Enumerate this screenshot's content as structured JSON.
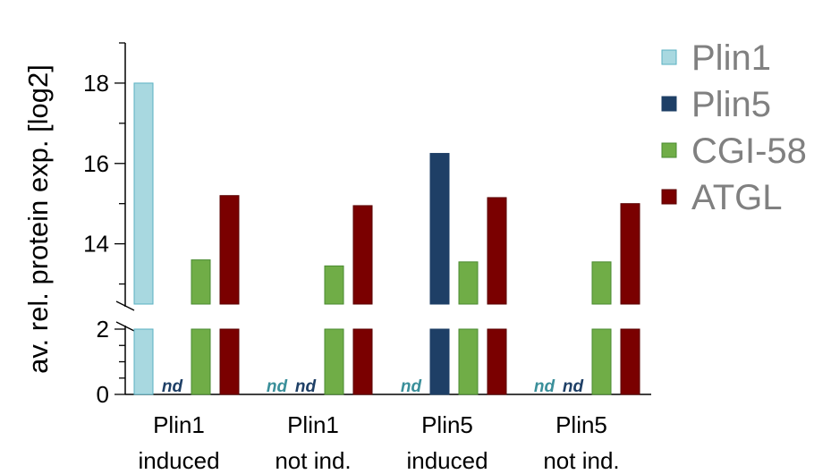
{
  "chart_data": {
    "type": "bar",
    "ylabel": "av. rel. protein exp. [log2]",
    "categories": [
      [
        "Plin1",
        "induced"
      ],
      [
        "Plin1",
        "not ind."
      ],
      [
        "Plin5",
        "induced"
      ],
      [
        "Plin5",
        "not ind."
      ]
    ],
    "series": [
      {
        "name": "Plin1",
        "color": "#a8d8e0",
        "stroke": "#5ab0c2",
        "values": [
          18.0,
          null,
          null,
          null
        ],
        "nd_color": "#3a8f9a"
      },
      {
        "name": "Plin5",
        "color": "#1e3f66",
        "stroke": "#1e3f66",
        "values": [
          null,
          null,
          16.25,
          null
        ],
        "nd_color": "#1e3f66"
      },
      {
        "name": "CGI-58",
        "color": "#70ad47",
        "stroke": "#4a8a30",
        "values": [
          13.6,
          13.45,
          13.55,
          13.55
        ],
        "nd_color": "#4a8a30"
      },
      {
        "name": "ATGL",
        "color": "#7a0000",
        "stroke": "#5a0000",
        "values": [
          15.2,
          14.95,
          15.15,
          15.0
        ],
        "nd_color": "#7a0000"
      }
    ],
    "nd_label": "nd",
    "axis_break": true,
    "lower_segment": {
      "ylim": [
        0,
        2
      ],
      "ticks": [
        "0",
        "2"
      ]
    },
    "upper_segment": {
      "ylim": [
        12.5,
        19
      ],
      "ticks": [
        "14",
        "16",
        "18"
      ]
    },
    "legend_position": "top-right"
  }
}
